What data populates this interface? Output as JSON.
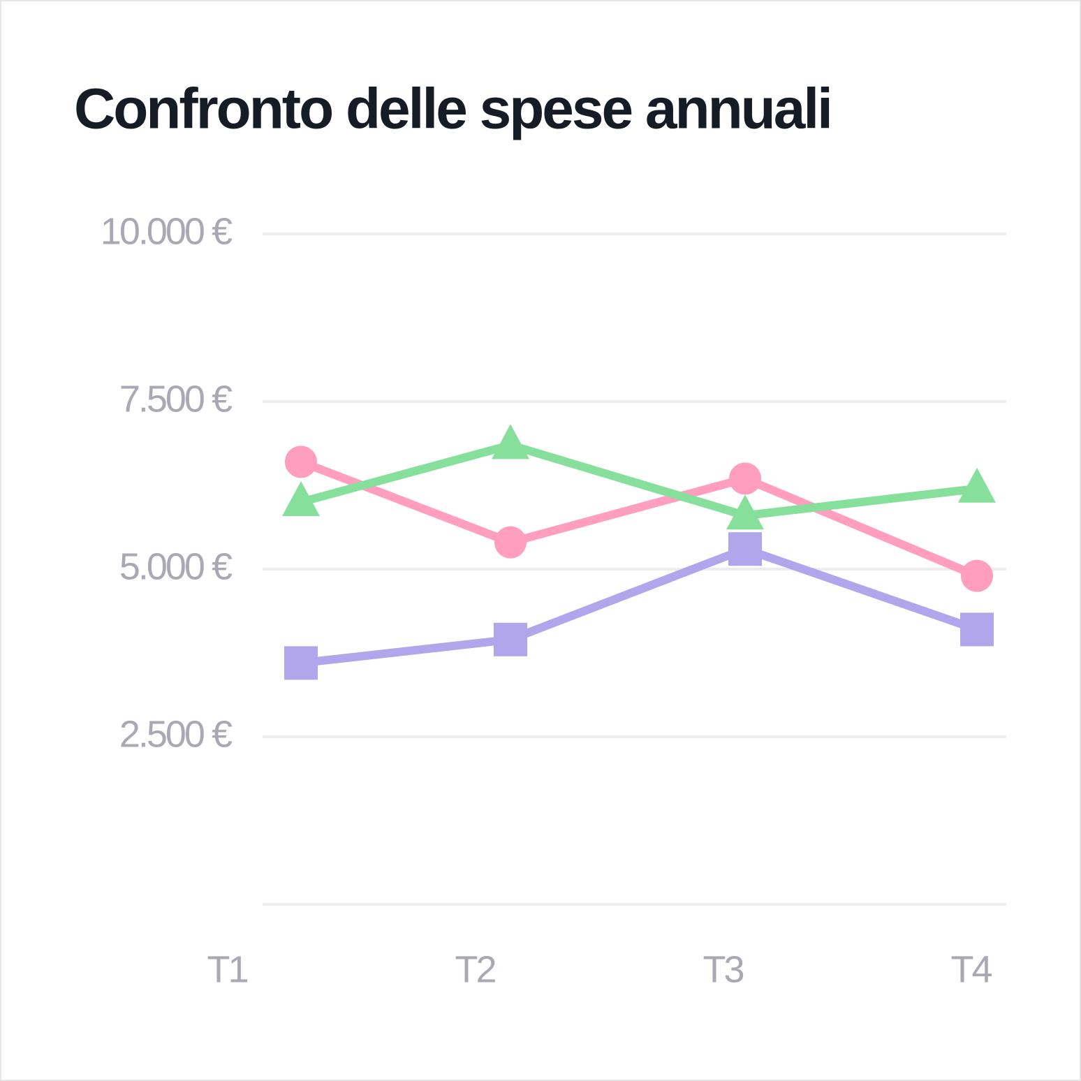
{
  "chart_data": {
    "type": "line",
    "title": "Confronto delle spese annuali",
    "categories": [
      "T1",
      "T2",
      "T3",
      "T4"
    ],
    "series": [
      {
        "color": "#ff9ebf",
        "marker": "circle",
        "values": [
          6600,
          5400,
          6350,
          4900
        ]
      },
      {
        "color": "#86df9b",
        "marker": "triangle",
        "values": [
          6000,
          6850,
          5800,
          6200
        ]
      },
      {
        "color": "#b1a5ec",
        "marker": "square",
        "values": [
          3600,
          3950,
          5300,
          4100
        ]
      }
    ],
    "ylim": [
      0,
      10000
    ],
    "yticks": [
      {
        "value": 2500,
        "label": "2.500 €"
      },
      {
        "value": 5000,
        "label": "5.000 €"
      },
      {
        "value": 7500,
        "label": "7.500 €"
      },
      {
        "value": 10000,
        "label": "10.000 €"
      }
    ],
    "grid": true
  }
}
